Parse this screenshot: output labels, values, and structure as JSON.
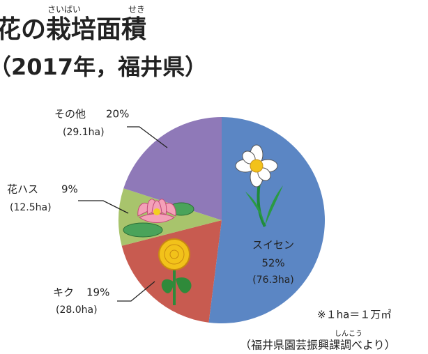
{
  "chart_data": {
    "type": "pie",
    "title": "花の栽培面積",
    "title_ruby": [
      "さいばい",
      "せき"
    ],
    "subtitle": "（2017年，福井県）",
    "categories": [
      "スイセン",
      "キク",
      "花ハス",
      "その他"
    ],
    "values": [
      52,
      19,
      9,
      20
    ],
    "value_labels": [
      "52%",
      "19%",
      "9%",
      "20%"
    ],
    "area_labels": [
      "(76.3ha)",
      "(28.0ha)",
      "(12.5ha)",
      "(29.1ha)"
    ],
    "colors": [
      "#5b86c4",
      "#c85b50",
      "#a8c46c",
      "#8f79b8"
    ],
    "note": "※１ha＝１万㎡",
    "source": "（福井県園芸振興課調べより）",
    "source_ruby": "しんこう"
  }
}
